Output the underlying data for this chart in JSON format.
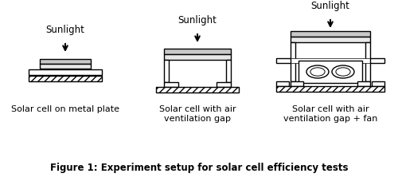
{
  "bg_color": "#ffffff",
  "line_color": "#000000",
  "gray_solar": "#c8c8c8",
  "gray_plate": "#e8e8e8",
  "title": "Figure 1: Experiment setup for solar cell efficiency tests",
  "title_fontsize": 8.5,
  "label1": "Solar cell on metal plate",
  "label2": "Solar cell with air\nventilation gap",
  "label3": "Solar cell with air\nventilation gap + fan",
  "sunlight": "Sunlight",
  "label_fontsize": 8,
  "sunlight_fontsize": 8.5,
  "d1x": 82,
  "d2x": 248,
  "d3x": 415
}
